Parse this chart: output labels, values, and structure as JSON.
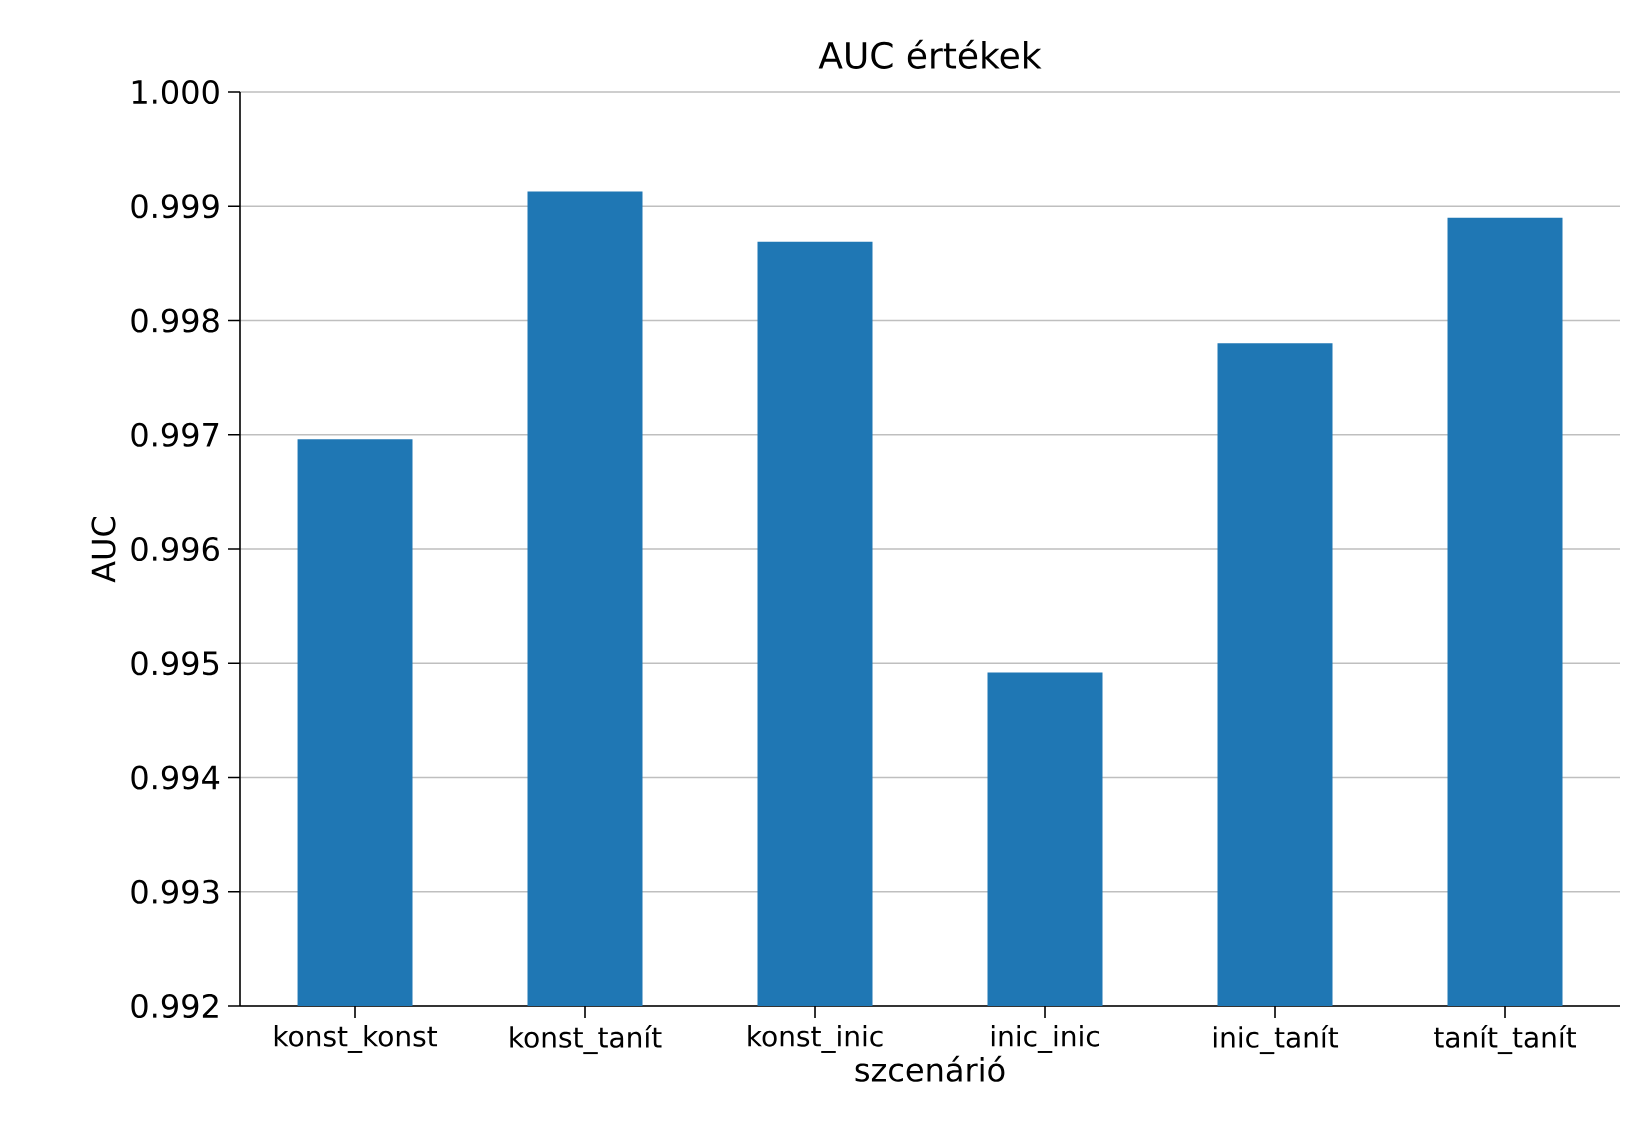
{
  "chart_data": {
    "type": "bar",
    "title": "AUC értékek",
    "xlabel": "szcenárió",
    "ylabel": "AUC",
    "categories": [
      "konst_konst",
      "konst_tanít",
      "konst_inic",
      "inic_inic",
      "inic_tanít",
      "tanít_tanít"
    ],
    "values": [
      0.99696,
      0.99913,
      0.99869,
      0.99492,
      0.9978,
      0.9989
    ],
    "color": "#1f77b4",
    "ylim": [
      0.992,
      1.0
    ],
    "yticks": [
      {
        "value": 0.992,
        "label": "0.992"
      },
      {
        "value": 0.993,
        "label": "0.993"
      },
      {
        "value": 0.994,
        "label": "0.994"
      },
      {
        "value": 0.995,
        "label": "0.995"
      },
      {
        "value": 0.996,
        "label": "0.996"
      },
      {
        "value": 0.997,
        "label": "0.997"
      },
      {
        "value": 0.998,
        "label": "0.998"
      },
      {
        "value": 0.999,
        "label": "0.999"
      },
      {
        "value": 1.0,
        "label": "1.000"
      }
    ],
    "grid": "y"
  }
}
